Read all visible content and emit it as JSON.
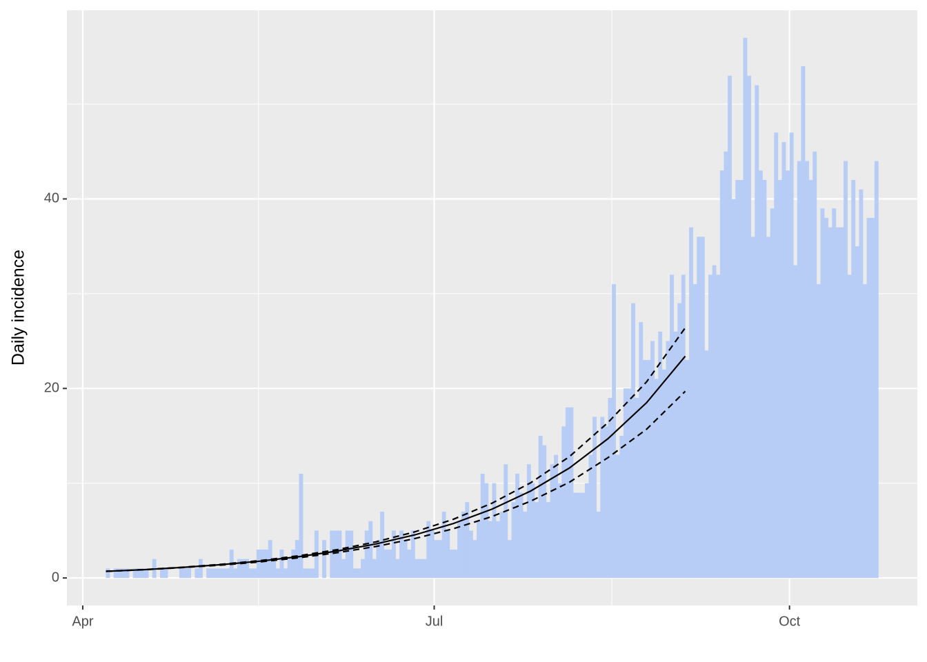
{
  "chart_data": {
    "type": "histogram",
    "ylabel": "Daily incidence",
    "bar_color": "#b7cdf5",
    "panel_color": "#ebebeb",
    "grid": true,
    "xlim": [
      -4.1,
      216.1
    ],
    "ylim": [
      -2.9,
      59.9
    ],
    "xticks": [
      {
        "value": 0,
        "label": "Apr"
      },
      {
        "value": 91,
        "label": "Jul"
      },
      {
        "value": 183,
        "label": "Oct"
      }
    ],
    "minor_xticks": [
      45.5,
      137
    ],
    "yticks": [
      0,
      20,
      40
    ],
    "minor_yticks": [
      10,
      30,
      50
    ],
    "bins": [
      6,
      7,
      8,
      9,
      10,
      11,
      12,
      13,
      14,
      15,
      16,
      17,
      18,
      19,
      20,
      21,
      22,
      23,
      24,
      25,
      26,
      27,
      28,
      29,
      30,
      31,
      32,
      33,
      34,
      35,
      36,
      37,
      38,
      39,
      40,
      41,
      42,
      43,
      44,
      45,
      46,
      47,
      48,
      49,
      50,
      51,
      52,
      53,
      54,
      55,
      56,
      57,
      58,
      59,
      60,
      61,
      62,
      63,
      64,
      65,
      66,
      67,
      68,
      69,
      70,
      71,
      72,
      73,
      74,
      75,
      76,
      77,
      78,
      79,
      80,
      81,
      82,
      83,
      84,
      85,
      86,
      87,
      88,
      89,
      90,
      91,
      92,
      93,
      94,
      95,
      96,
      97,
      98,
      99,
      100,
      101,
      102,
      103,
      104,
      105,
      106,
      107,
      108,
      109,
      110,
      111,
      112,
      113,
      114,
      115,
      116,
      117,
      118,
      119,
      120,
      121,
      122,
      123,
      124,
      125,
      126,
      127,
      128,
      129,
      130,
      131,
      132,
      133,
      134,
      135,
      136,
      137,
      138,
      139,
      140,
      141,
      142,
      143,
      144,
      145,
      146,
      147,
      148,
      149,
      150,
      151,
      152,
      153,
      154,
      155,
      156,
      157,
      158,
      159,
      160,
      161,
      162,
      163,
      164,
      165,
      166,
      167,
      168,
      169,
      170,
      171,
      172,
      173,
      174,
      175,
      176,
      177,
      178,
      179,
      180,
      181,
      182,
      183,
      184,
      185,
      186,
      187,
      188,
      189,
      190,
      191,
      192,
      193,
      194,
      195,
      196,
      197,
      198,
      199,
      200,
      201,
      202,
      203,
      204,
      205,
      206
    ],
    "counts": [
      1,
      0,
      1,
      1,
      1,
      1,
      0,
      1,
      1,
      1,
      1,
      0,
      2,
      0,
      1,
      1,
      0,
      0,
      0,
      1,
      1,
      1,
      0,
      1,
      2,
      0,
      1,
      1,
      1,
      1,
      1,
      1,
      3,
      1,
      2,
      2,
      2,
      1,
      1,
      3,
      3,
      3,
      4,
      2,
      1,
      3,
      1,
      2,
      3,
      4,
      11,
      1,
      1,
      1,
      5,
      0,
      4,
      0,
      5,
      5,
      5,
      2,
      5,
      5,
      1,
      1,
      2,
      5,
      6,
      2,
      4,
      7,
      3,
      3,
      5,
      2,
      5,
      4,
      3,
      5,
      2,
      2,
      2,
      6,
      5,
      4,
      4,
      7,
      5,
      3,
      3,
      6,
      7,
      8,
      5,
      4,
      6,
      11,
      10,
      6,
      10,
      6,
      7,
      12,
      4,
      8,
      11,
      9,
      7,
      12,
      10,
      8,
      15,
      14,
      8,
      12,
      13,
      10,
      16,
      18,
      18,
      9,
      9,
      9,
      10,
      13,
      17,
      7,
      17,
      16,
      19,
      31,
      13,
      15,
      20,
      20,
      29,
      19,
      27,
      23,
      23,
      25,
      21,
      26,
      22,
      25,
      32,
      26,
      29,
      32,
      23,
      37,
      31,
      36,
      36,
      24,
      32,
      33,
      32,
      43,
      45,
      53,
      40,
      42,
      42,
      57,
      53,
      36,
      52,
      43,
      42,
      36,
      39,
      47,
      42,
      46,
      43,
      47,
      33,
      44,
      54,
      44,
      42,
      45,
      31,
      39,
      38,
      37,
      39,
      37,
      37,
      44,
      32,
      42,
      35,
      41,
      31,
      38,
      38,
      44
    ],
    "fit_x": [
      6,
      16,
      26,
      36,
      46,
      56,
      66,
      76,
      86,
      96,
      106,
      116,
      126,
      136,
      146,
      156
    ],
    "lines": [
      {
        "color": "#000000",
        "dashed": false,
        "values": [
          0.7,
          0.88,
          1.12,
          1.41,
          1.78,
          2.25,
          2.85,
          3.6,
          4.55,
          5.75,
          7.27,
          9.18,
          11.6,
          14.7,
          18.5,
          23.4
        ]
      },
      {
        "color": "#000000",
        "dashed": true,
        "values": [
          0.7,
          0.89,
          1.14,
          1.45,
          1.84,
          2.35,
          3.0,
          3.82,
          4.87,
          6.2,
          7.9,
          10.05,
          12.8,
          16.4,
          20.7,
          26.4
        ]
      },
      {
        "color": "#000000",
        "dashed": true,
        "values": [
          0.7,
          0.87,
          1.1,
          1.36,
          1.7,
          2.13,
          2.67,
          3.33,
          4.16,
          5.2,
          6.49,
          8.11,
          10.1,
          12.7,
          15.7,
          19.7
        ]
      }
    ]
  }
}
